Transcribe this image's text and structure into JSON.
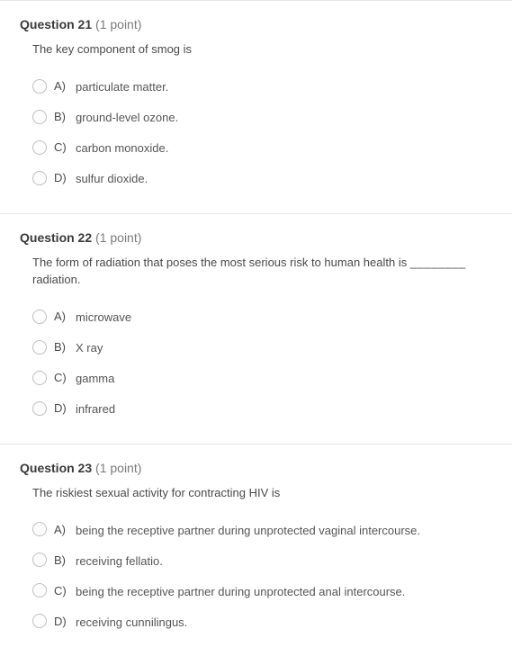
{
  "colors": {
    "text": "#4a4a4a",
    "muted": "#7a7a7a",
    "border": "#e6e6e6",
    "radio_border": "#bfbfbf",
    "background": "#ffffff"
  },
  "typography": {
    "base_fontsize": 13,
    "header_fontsize": 14,
    "line_height": 1.5
  },
  "questions": [
    {
      "number": "Question 21",
      "points": "(1 point)",
      "prompt": "The key component of smog is",
      "blank": "",
      "options": [
        {
          "letter": "A)",
          "text": "particulate matter."
        },
        {
          "letter": "B)",
          "text": "ground-level ozone."
        },
        {
          "letter": "C)",
          "text": "carbon monoxide."
        },
        {
          "letter": "D)",
          "text": "sulfur dioxide."
        }
      ]
    },
    {
      "number": "Question 22",
      "points": "(1 point)",
      "prompt": "The form of radiation that poses the most serious risk to human health is ",
      "blank": "________",
      "prompt_tail": " radiation.",
      "options": [
        {
          "letter": "A)",
          "text": "microwave"
        },
        {
          "letter": "B)",
          "text": "X ray"
        },
        {
          "letter": "C)",
          "text": "gamma"
        },
        {
          "letter": "D)",
          "text": "infrared"
        }
      ]
    },
    {
      "number": "Question 23",
      "points": "(1 point)",
      "prompt": "The riskiest sexual activity for contracting HIV is",
      "blank": "",
      "options": [
        {
          "letter": "A)",
          "text": "being the receptive partner during unprotected vaginal intercourse."
        },
        {
          "letter": "B)",
          "text": "receiving fellatio."
        },
        {
          "letter": "C)",
          "text": "being the receptive partner during unprotected anal intercourse."
        },
        {
          "letter": "D)",
          "text": "receiving cunnilingus."
        }
      ]
    }
  ]
}
